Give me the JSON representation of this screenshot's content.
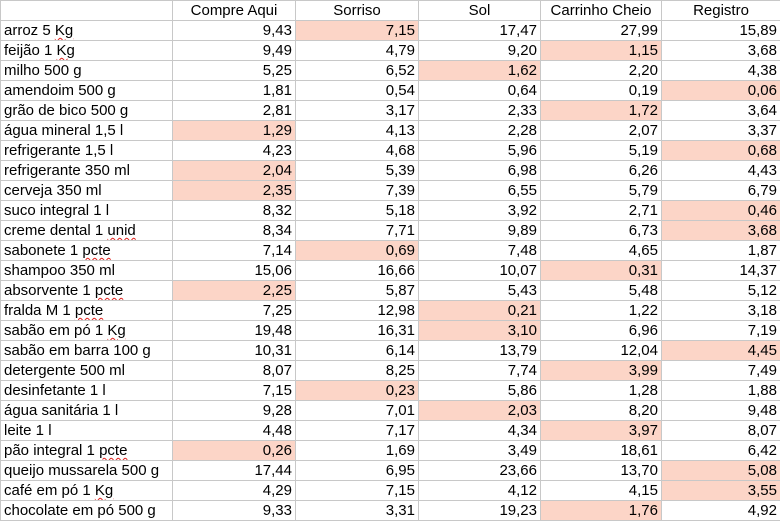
{
  "headers": [
    "",
    "Compre Aqui",
    "Sorriso",
    "Sol",
    "Carrinho Cheio",
    "Registro"
  ],
  "colors": {
    "min_highlight": "#fcd5c7",
    "gridline": "#c8c8c8",
    "spellcheck": "#e0211d"
  },
  "rows": [
    {
      "pre": "arroz 5 ",
      "word": "Kg",
      "post": "",
      "values": [
        "9,43",
        "7,15",
        "17,47",
        "27,99",
        "15,89"
      ],
      "min": [
        1
      ]
    },
    {
      "pre": "feijão 1 ",
      "word": "Kg",
      "post": "",
      "values": [
        "9,49",
        "4,79",
        "9,20",
        "1,15",
        "3,68"
      ],
      "min": [
        3
      ]
    },
    {
      "pre": "milho 500 g",
      "word": "",
      "post": "",
      "values": [
        "5,25",
        "6,52",
        "1,62",
        "2,20",
        "4,38"
      ],
      "min": [
        2
      ]
    },
    {
      "pre": "amendoim 500 g",
      "word": "",
      "post": "",
      "values": [
        "1,81",
        "0,54",
        "0,64",
        "0,19",
        "0,06"
      ],
      "min": [
        4
      ]
    },
    {
      "pre": "grão de bico 500 g",
      "word": "",
      "post": "",
      "values": [
        "2,81",
        "3,17",
        "2,33",
        "1,72",
        "3,64"
      ],
      "min": [
        3
      ]
    },
    {
      "pre": "água mineral 1,5 l",
      "word": "",
      "post": "",
      "values": [
        "1,29",
        "4,13",
        "2,28",
        "2,07",
        "3,37"
      ],
      "min": [
        0
      ]
    },
    {
      "pre": "refrigerante 1,5 l",
      "word": "",
      "post": "",
      "values": [
        "4,23",
        "4,68",
        "5,96",
        "5,19",
        "0,68"
      ],
      "min": [
        4
      ]
    },
    {
      "pre": "refrigerante 350 ml",
      "word": "",
      "post": "",
      "values": [
        "2,04",
        "5,39",
        "6,98",
        "6,26",
        "4,43"
      ],
      "min": [
        0
      ]
    },
    {
      "pre": "cerveja 350 ml",
      "word": "",
      "post": "",
      "values": [
        "2,35",
        "7,39",
        "6,55",
        "5,79",
        "6,79"
      ],
      "min": [
        0
      ]
    },
    {
      "pre": "suco integral 1 l",
      "word": "",
      "post": "",
      "values": [
        "8,32",
        "5,18",
        "3,92",
        "2,71",
        "0,46"
      ],
      "min": [
        4
      ]
    },
    {
      "pre": "creme dental 1 ",
      "word": "unid",
      "post": "",
      "values": [
        "8,34",
        "7,71",
        "9,89",
        "6,73",
        "3,68"
      ],
      "min": [
        4
      ]
    },
    {
      "pre": "sabonete 1 ",
      "word": "pcte",
      "post": "",
      "values": [
        "7,14",
        "0,69",
        "7,48",
        "4,65",
        "1,87"
      ],
      "min": [
        1
      ]
    },
    {
      "pre": "shampoo 350 ml",
      "word": "",
      "post": "",
      "values": [
        "15,06",
        "16,66",
        "10,07",
        "0,31",
        "14,37"
      ],
      "min": [
        3
      ]
    },
    {
      "pre": "absorvente 1 ",
      "word": "pcte",
      "post": "",
      "values": [
        "2,25",
        "5,87",
        "5,43",
        "5,48",
        "5,12"
      ],
      "min": [
        0
      ]
    },
    {
      "pre": "fralda M 1 ",
      "word": "pcte",
      "post": "",
      "values": [
        "7,25",
        "12,98",
        "0,21",
        "1,22",
        "3,18"
      ],
      "min": [
        2
      ]
    },
    {
      "pre": "sabão em pó 1 ",
      "word": "Kg",
      "post": "",
      "values": [
        "19,48",
        "16,31",
        "3,10",
        "6,96",
        "7,19"
      ],
      "min": [
        2
      ]
    },
    {
      "pre": "sabão em barra 100 g",
      "word": "",
      "post": "",
      "values": [
        "10,31",
        "6,14",
        "13,79",
        "12,04",
        "4,45"
      ],
      "min": [
        4
      ]
    },
    {
      "pre": "detergente 500 ml",
      "word": "",
      "post": "",
      "values": [
        "8,07",
        "8,25",
        "7,74",
        "3,99",
        "7,49"
      ],
      "min": [
        3
      ]
    },
    {
      "pre": "desinfetante 1 l",
      "word": "",
      "post": "",
      "values": [
        "7,15",
        "0,23",
        "5,86",
        "1,28",
        "1,88"
      ],
      "min": [
        1
      ]
    },
    {
      "pre": "água sanitária 1 l",
      "word": "",
      "post": "",
      "values": [
        "9,28",
        "7,01",
        "2,03",
        "8,20",
        "9,48"
      ],
      "min": [
        2
      ]
    },
    {
      "pre": "leite 1 l",
      "word": "",
      "post": "",
      "values": [
        "4,48",
        "7,17",
        "4,34",
        "3,97",
        "8,07"
      ],
      "min": [
        3
      ]
    },
    {
      "pre": "pão integral 1 ",
      "word": "pcte",
      "post": "",
      "values": [
        "0,26",
        "1,69",
        "3,49",
        "18,61",
        "6,42"
      ],
      "min": [
        0
      ]
    },
    {
      "pre": "queijo mussarela 500 g",
      "word": "",
      "post": "",
      "values": [
        "17,44",
        "6,95",
        "23,66",
        "13,70",
        "5,08"
      ],
      "min": [
        4
      ]
    },
    {
      "pre": "café em pó 1 ",
      "word": "Kg",
      "post": "",
      "values": [
        "4,29",
        "7,15",
        "4,12",
        "4,15",
        "3,55"
      ],
      "min": [
        4
      ]
    },
    {
      "pre": "chocolate em pó 500 g",
      "word": "",
      "post": "",
      "values": [
        "9,33",
        "3,31",
        "19,23",
        "1,76",
        "4,92"
      ],
      "min": [
        3
      ]
    }
  ]
}
